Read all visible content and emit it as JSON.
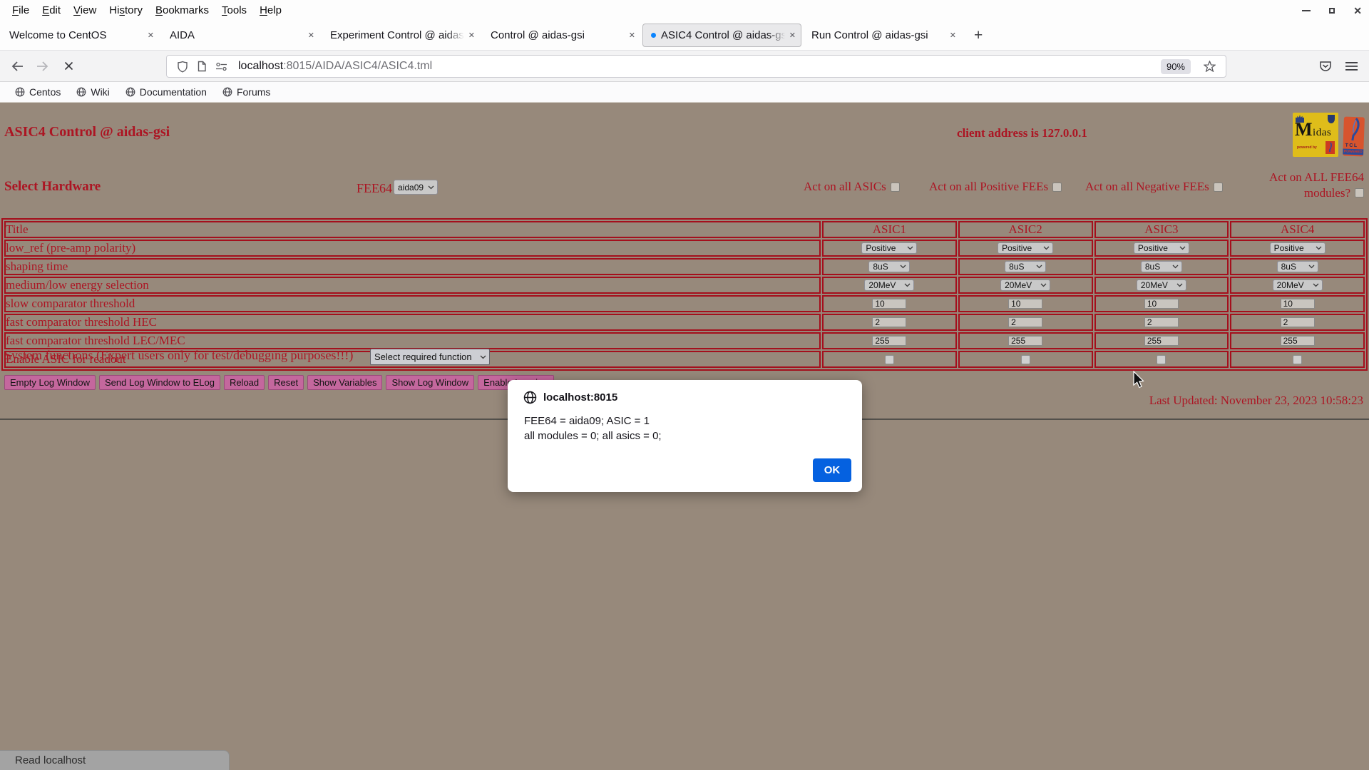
{
  "colors": {
    "page_bg": "#97897B",
    "accent_red": "#AC1523",
    "table_border_red": "#A40F1C",
    "button_pink": "#C4679D",
    "ok_blue": "#0561E0",
    "loading_dot_blue": "#0A84FF"
  },
  "browser": {
    "menu": [
      {
        "label": "File",
        "accel": 0
      },
      {
        "label": "Edit",
        "accel": 0
      },
      {
        "label": "View",
        "accel": 0
      },
      {
        "label": "History",
        "accel": 2
      },
      {
        "label": "Bookmarks",
        "accel": 0
      },
      {
        "label": "Tools",
        "accel": 0
      },
      {
        "label": "Help",
        "accel": 0
      }
    ],
    "tabs": [
      {
        "title": "Welcome to CentOS",
        "active": false,
        "loading": false
      },
      {
        "title": "AIDA",
        "active": false,
        "loading": false
      },
      {
        "title": "Experiment Control @ aidas-g",
        "active": false,
        "loading": false
      },
      {
        "title": "Control @ aidas-gsi",
        "active": false,
        "loading": false
      },
      {
        "title": "ASIC4 Control @ aidas-gsi",
        "active": true,
        "loading": true
      },
      {
        "title": "Run Control @ aidas-gsi",
        "active": false,
        "loading": false
      }
    ],
    "new_tab_label": "+",
    "url_host": "localhost",
    "url_rest": ":8015/AIDA/ASIC4/ASIC4.tml",
    "zoom_level": "90%",
    "bookmarks": [
      "Centos",
      "Wiki",
      "Documentation",
      "Forums"
    ],
    "status_text": "Read localhost"
  },
  "page": {
    "title": "ASIC4 Control @ aidas-gsi",
    "client_address": "client address is 127.0.0.1",
    "select_hardware_label": "Select Hardware",
    "fee64_label": "FEE64",
    "fee64_value": "aida09",
    "act_checkboxes": [
      {
        "label": "Act on all ASICs"
      },
      {
        "label": "Act on all Positive FEEs"
      },
      {
        "label": "Act on all Negative FEEs"
      },
      {
        "label_lines": [
          "Act on ALL FEE64",
          "modules?"
        ]
      }
    ],
    "table": {
      "header": [
        "Title",
        "ASIC1",
        "ASIC2",
        "ASIC3",
        "ASIC4"
      ],
      "rows": [
        {
          "name": "low-ref-polarity",
          "label": "low_ref (pre-amp polarity)",
          "type": "select",
          "value": "Positive"
        },
        {
          "name": "shaping-time",
          "label": "shaping time",
          "type": "select",
          "value": "8uS"
        },
        {
          "name": "energy-selection",
          "label": "medium/low energy selection",
          "type": "select",
          "value": "20MeV"
        },
        {
          "name": "slow-comparator-threshold",
          "label": "slow comparator threshold",
          "type": "input",
          "value": "10"
        },
        {
          "name": "fast-comparator-threshold-hec",
          "label": "fast comparator threshold HEC",
          "type": "input",
          "value": "2"
        },
        {
          "name": "fast-comparator-threshold-lec-mec",
          "label": "fast comparator threshold LEC/MEC",
          "type": "input",
          "value": "255"
        },
        {
          "name": "enable-asic-readout",
          "label": "Enable ASIC for readout",
          "type": "checkbox",
          "value": false
        }
      ]
    },
    "system_functions_label": "System functions (Expert users only for test/debugging purposes!!!)",
    "system_functions_value": "Select required function",
    "log_buttons": [
      "Empty Log Window",
      "Send Log Window to ELog",
      "Reload",
      "Reset",
      "Show Variables",
      "Show Log Window",
      "Enable Logging"
    ],
    "last_updated": "Last Updated: November 23, 2023 10:58:23"
  },
  "logos": {
    "midas_m": "M",
    "midas_rest": "idas",
    "midas_sub": "powered by",
    "tcl_text": "TCL",
    "tcl_sub": "POWERED"
  },
  "dialog": {
    "host": "localhost:8015",
    "lines": [
      "FEE64 = aida09; ASIC = 1",
      "all modules = 0; all asics = 0;"
    ],
    "ok_label": "OK"
  }
}
